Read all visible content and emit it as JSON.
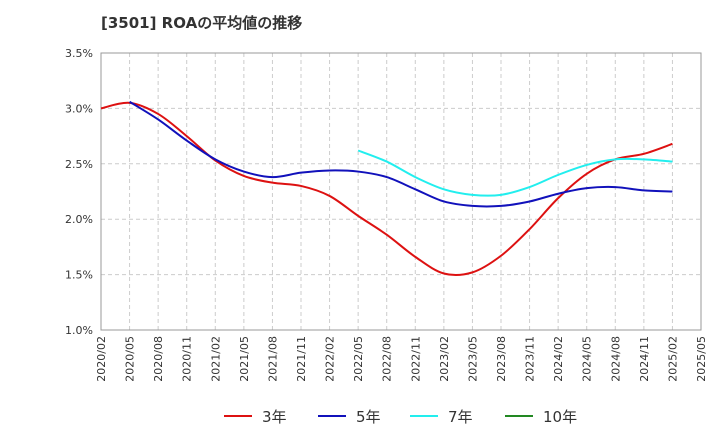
{
  "title": "[3501]  ROAの平均値の推移",
  "chart_data": {
    "type": "line",
    "title": "[3501]  ROAの平均値の推移",
    "xlabel": "",
    "ylabel": "",
    "x_ticks": [
      "2020/02",
      "2020/05",
      "2020/08",
      "2020/11",
      "2021/02",
      "2021/05",
      "2021/08",
      "2021/11",
      "2022/02",
      "2022/05",
      "2022/08",
      "2022/11",
      "2023/02",
      "2023/05",
      "2023/08",
      "2023/11",
      "2024/02",
      "2024/05",
      "2024/08",
      "2024/11",
      "2025/02",
      "2025/05"
    ],
    "y_ticks": [
      "1.0%",
      "1.5%",
      "2.0%",
      "2.5%",
      "3.0%",
      "3.5%"
    ],
    "ylim": [
      1.0,
      3.5
    ],
    "grid": true,
    "legend_position": "bottom",
    "series": [
      {
        "name": "3年",
        "color": "#dd1111",
        "x": [
          "2020/02",
          "2020/05",
          "2020/08",
          "2020/11",
          "2021/02",
          "2021/05",
          "2021/08",
          "2021/11",
          "2022/02",
          "2022/05",
          "2022/08",
          "2022/11",
          "2023/02",
          "2023/05",
          "2023/08",
          "2023/11",
          "2024/02",
          "2024/05",
          "2024/08",
          "2024/11",
          "2025/02"
        ],
        "values": [
          3.0,
          3.05,
          2.95,
          2.75,
          2.53,
          2.39,
          2.33,
          2.3,
          2.21,
          2.03,
          1.86,
          1.66,
          1.51,
          1.52,
          1.67,
          1.91,
          2.19,
          2.41,
          2.54,
          2.59,
          2.68
        ]
      },
      {
        "name": "5年",
        "color": "#1111bb",
        "x": [
          "2020/05",
          "2020/08",
          "2020/11",
          "2021/02",
          "2021/05",
          "2021/08",
          "2021/11",
          "2022/02",
          "2022/05",
          "2022/08",
          "2022/11",
          "2023/02",
          "2023/05",
          "2023/08",
          "2023/11",
          "2024/02",
          "2024/05",
          "2024/08",
          "2024/11",
          "2025/02"
        ],
        "values": [
          3.06,
          2.9,
          2.71,
          2.54,
          2.43,
          2.38,
          2.42,
          2.44,
          2.43,
          2.38,
          2.27,
          2.16,
          2.12,
          2.12,
          2.16,
          2.23,
          2.28,
          2.29,
          2.26,
          2.25
        ]
      },
      {
        "name": "7年",
        "color": "#22eeee",
        "x": [
          "2022/05",
          "2022/08",
          "2022/11",
          "2023/02",
          "2023/05",
          "2023/08",
          "2023/11",
          "2024/02",
          "2024/05",
          "2024/08",
          "2024/11",
          "2025/02"
        ],
        "values": [
          2.62,
          2.52,
          2.38,
          2.27,
          2.22,
          2.22,
          2.29,
          2.4,
          2.49,
          2.54,
          2.54,
          2.52
        ]
      },
      {
        "name": "10年",
        "color": "#228822",
        "x": [],
        "values": []
      }
    ]
  }
}
